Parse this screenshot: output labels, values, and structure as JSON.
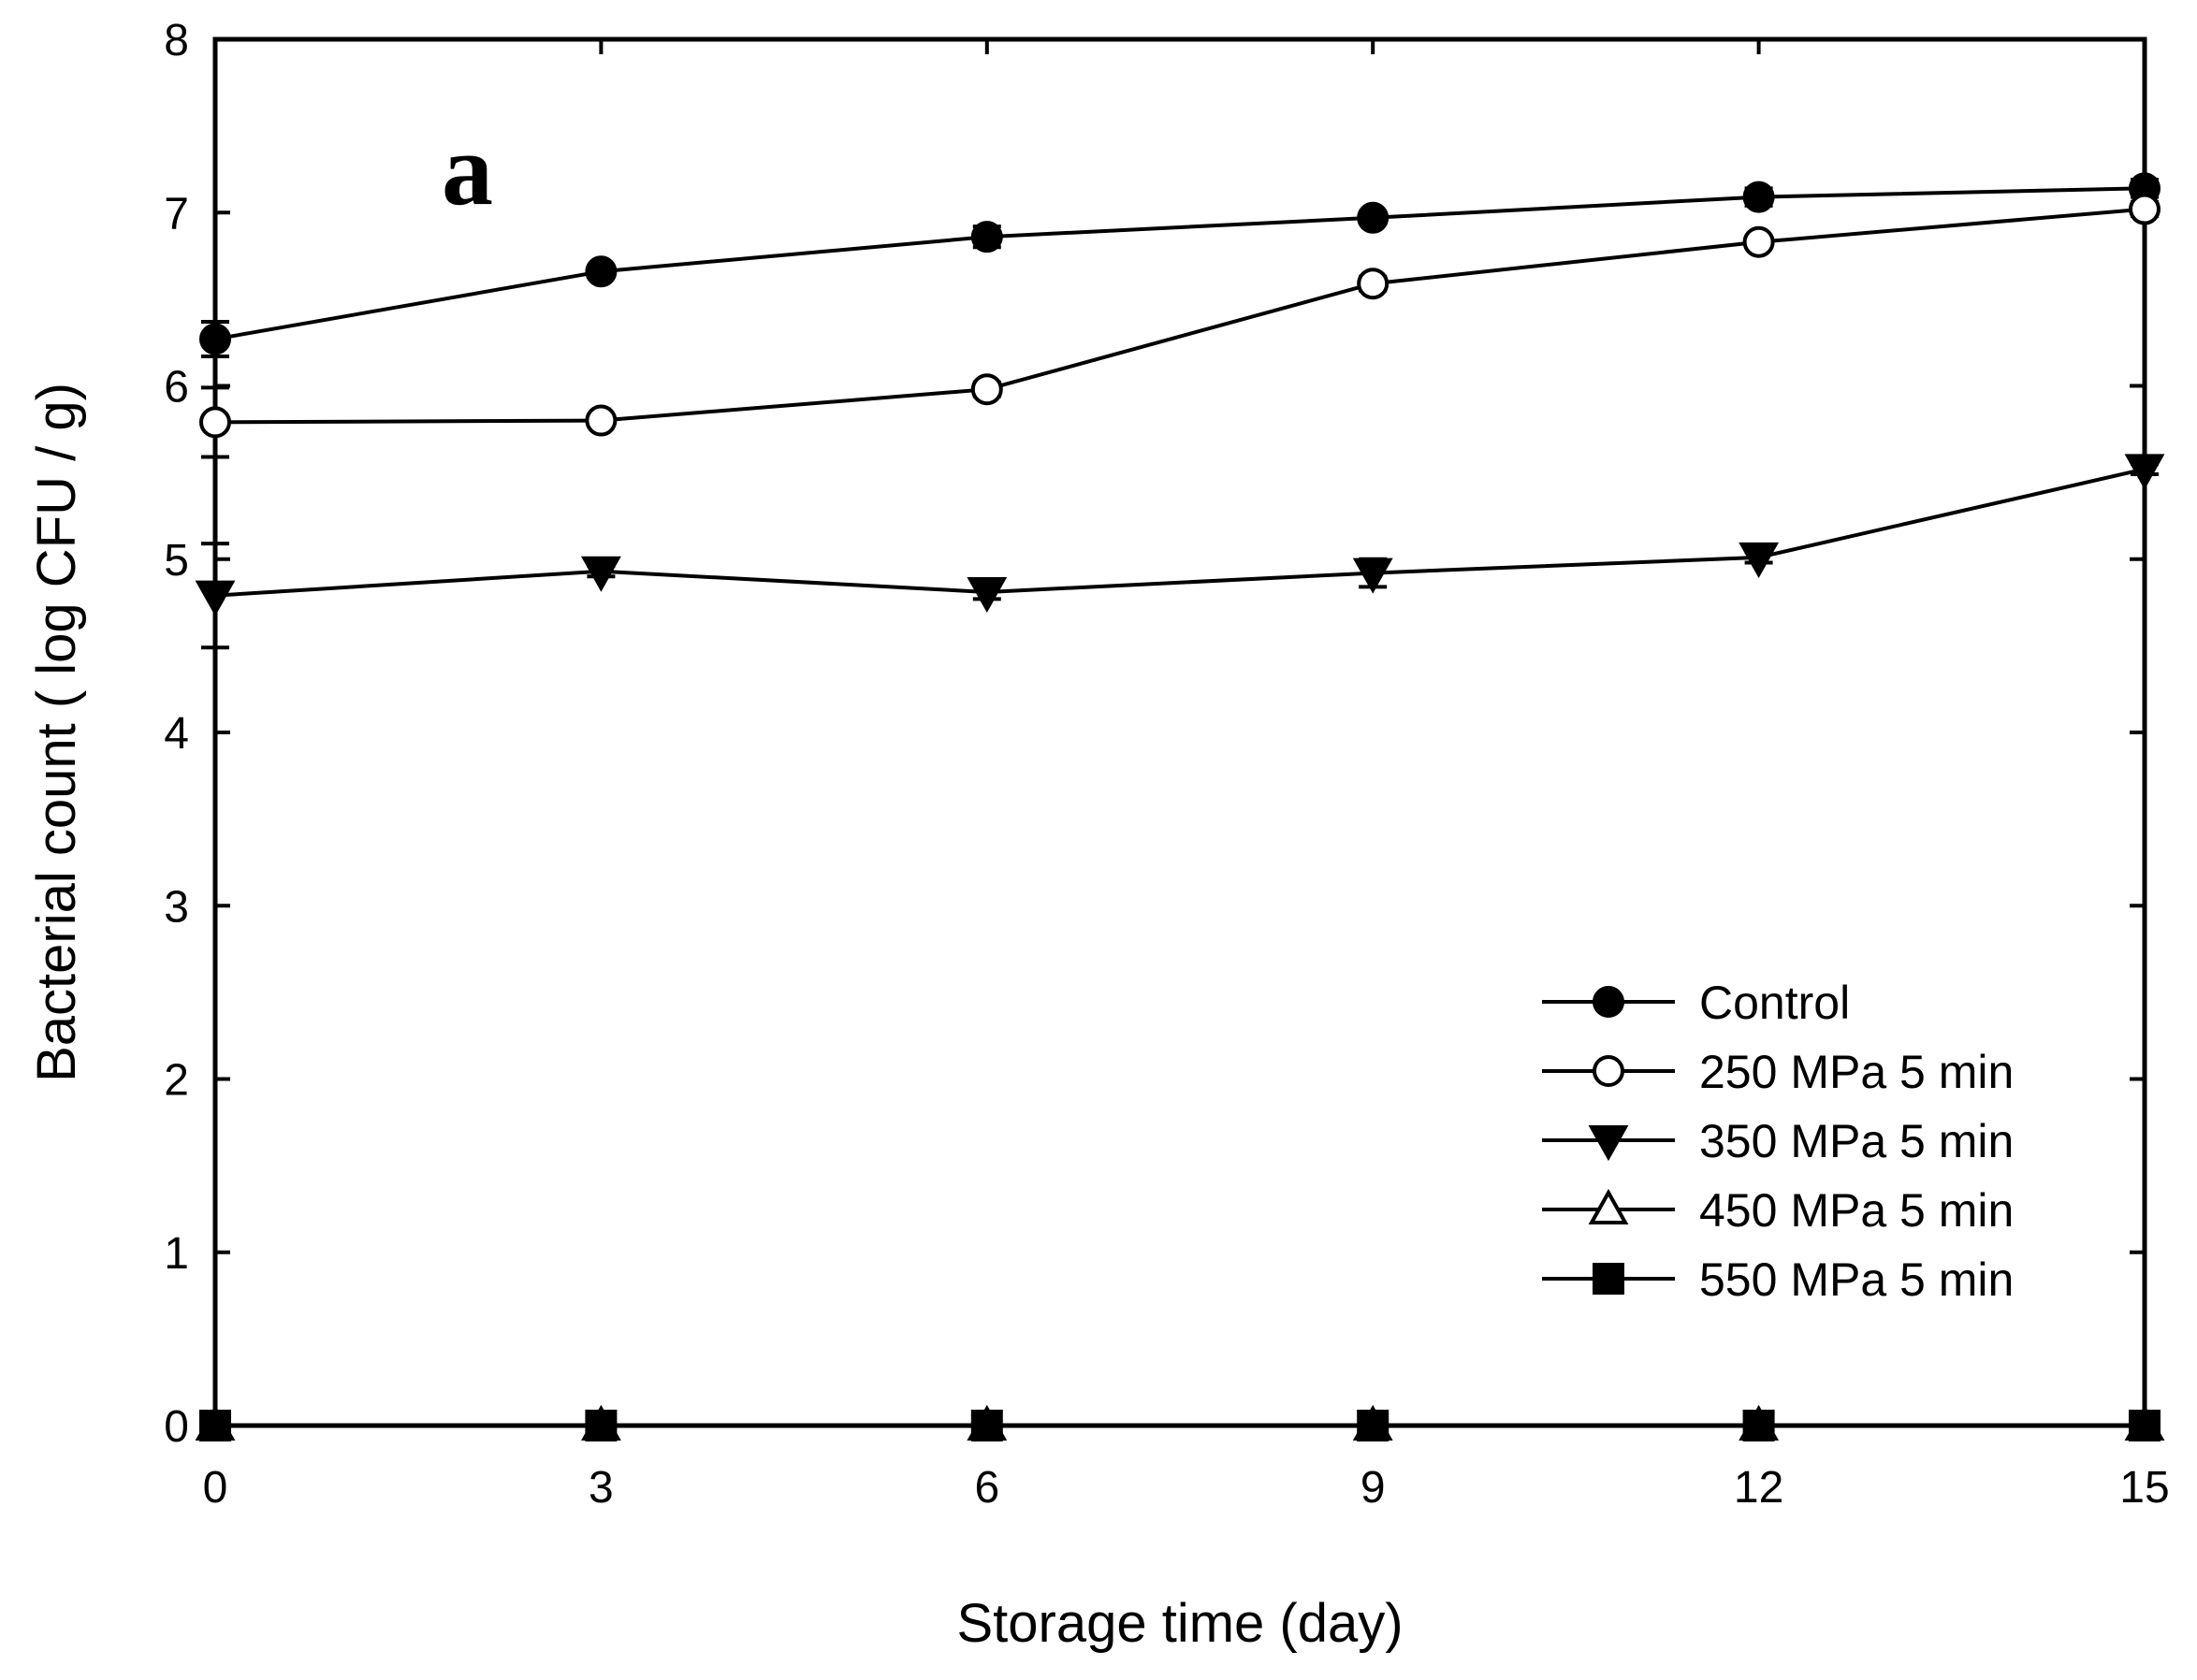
{
  "chart_data": {
    "type": "line",
    "title": "",
    "panel_label": "a",
    "xlabel": "Storage time (day)",
    "ylabel": "Bacterial count ( log CFU / g)",
    "xlim": [
      0,
      15
    ],
    "ylim": [
      0,
      8
    ],
    "x_ticks": [
      "0",
      "3",
      "6",
      "9",
      "12",
      "15"
    ],
    "y_ticks": [
      "0",
      "1",
      "2",
      "3",
      "4",
      "5",
      "6",
      "7",
      "8"
    ],
    "grid": false,
    "legend_position": "bottom-right",
    "x": [
      0,
      3,
      6,
      9,
      12,
      15
    ],
    "series": [
      {
        "name": "Control",
        "marker": "circle-filled",
        "values": [
          6.27,
          6.66,
          6.86,
          6.97,
          7.09,
          7.14
        ],
        "errors": [
          0.1,
          0.03,
          0.06,
          0.03,
          0.05,
          0.05
        ]
      },
      {
        "name": "250 MPa 5 min",
        "marker": "circle-open",
        "values": [
          5.79,
          5.8,
          5.98,
          6.59,
          6.83,
          7.02
        ],
        "errors": [
          0.2,
          0.03,
          0.04,
          0.04,
          0.03,
          0.04
        ]
      },
      {
        "name": "350 MPa 5 min",
        "marker": "triangle-down-filled",
        "values": [
          4.79,
          4.93,
          4.81,
          4.92,
          5.01,
          5.52
        ],
        "errors": [
          0.3,
          0.03,
          0.04,
          0.08,
          0.03,
          0.03
        ]
      },
      {
        "name": "450 MPa 5 min",
        "marker": "triangle-up-open",
        "values": [
          0,
          0,
          0,
          0,
          0,
          0
        ],
        "errors": [
          0,
          0,
          0,
          0,
          0,
          0
        ]
      },
      {
        "name": "550 MPa 5 min",
        "marker": "square-filled",
        "values": [
          0,
          0,
          0,
          0,
          0,
          0
        ],
        "errors": [
          0,
          0,
          0,
          0,
          0,
          0
        ]
      }
    ]
  }
}
